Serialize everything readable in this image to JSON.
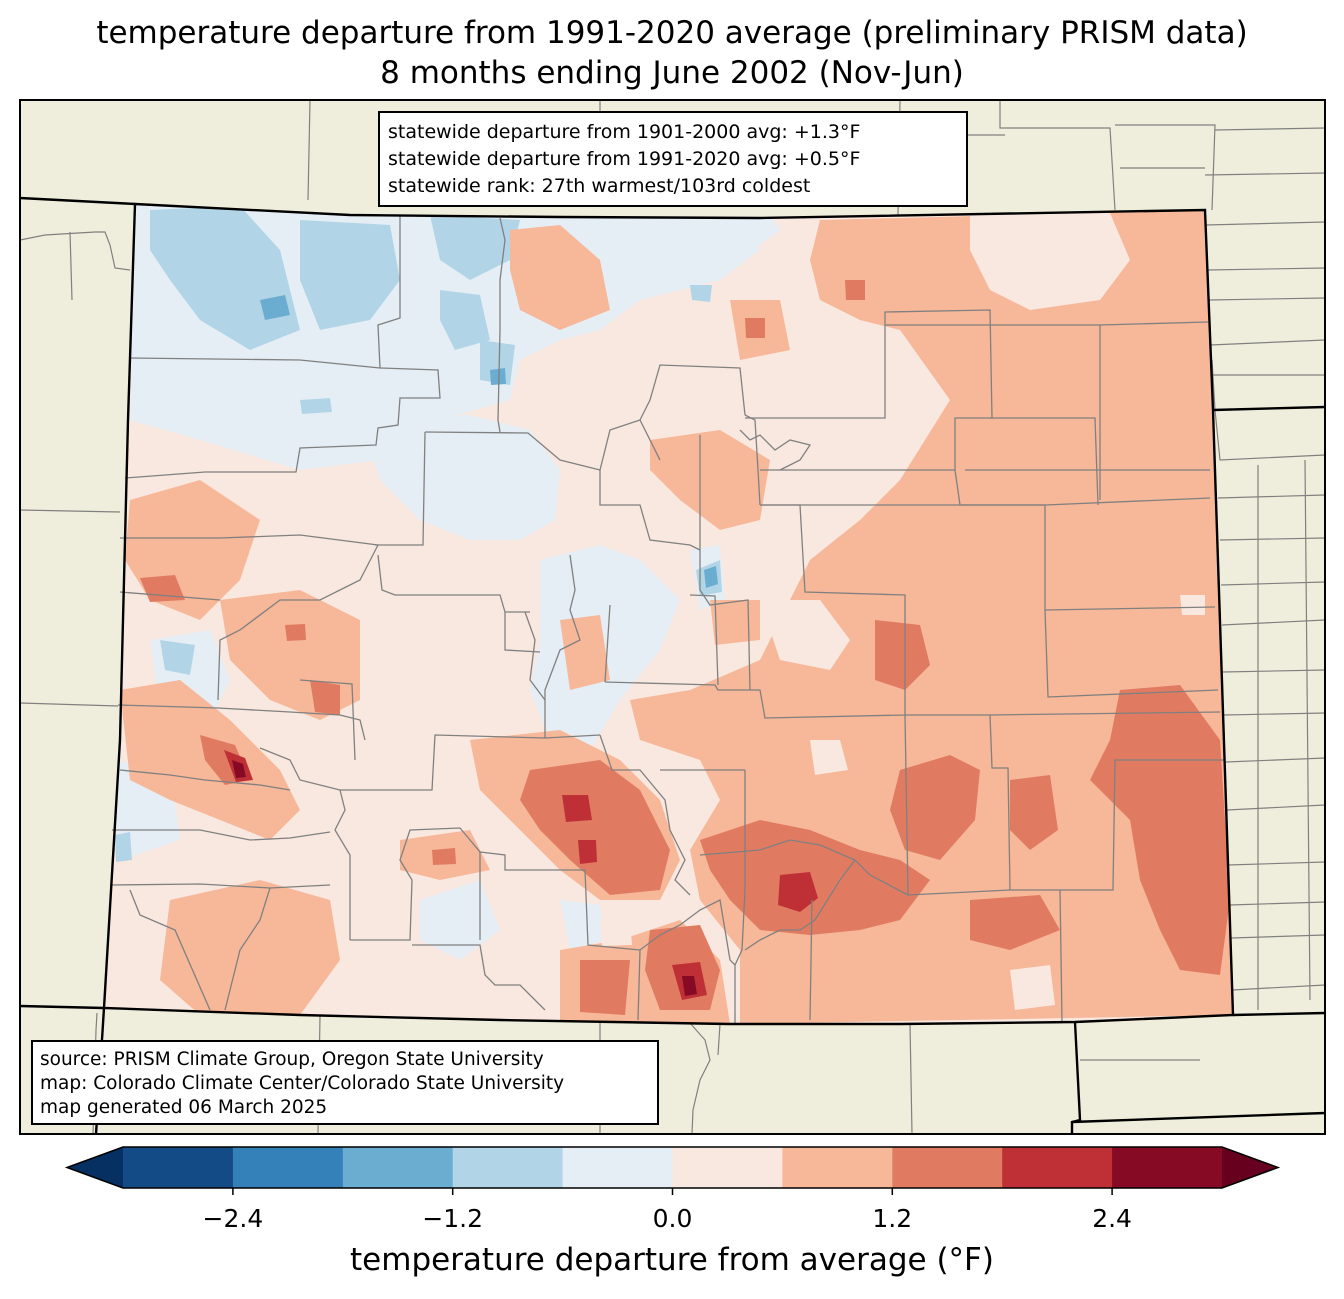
{
  "title": {
    "line1": "temperature departure from 1991-2020 average (preliminary PRISM data)",
    "line2": "8 months ending June 2002 (Nov-Jun)"
  },
  "stats": {
    "line1": "statewide departure from 1901-2000 avg: +1.3°F",
    "line2": "statewide departure from 1991-2020 avg: +0.5°F",
    "line3": "statewide rank: 27th warmest/103rd coldest"
  },
  "source": {
    "line1": "source: PRISM Climate Group, Oregon State University",
    "line2": "map: Colorado Climate Center/Colorado State University",
    "line3": "map generated 06 March 2025"
  },
  "colorbar": {
    "label": "temperature departure from average (°F)",
    "ticks": [
      "−2.4",
      "−1.2",
      "0.0",
      "1.2",
      "2.4"
    ],
    "tick_values": [
      -2.4,
      -1.2,
      0.0,
      1.2,
      2.4
    ],
    "range": [
      -3.0,
      3.0
    ],
    "bin_width": 0.6,
    "colors": [
      "#053061",
      "#134b87",
      "#3480b9",
      "#6bacd1",
      "#b1d5e7",
      "#e5eef4",
      "#f9e8e0",
      "#f7b799",
      "#e07b62",
      "#be3036",
      "#870a24",
      "#67001f"
    ]
  },
  "style": {
    "land_color": "#efeedc",
    "county_line_color": "#808080",
    "state_line_color": "#000000"
  }
}
